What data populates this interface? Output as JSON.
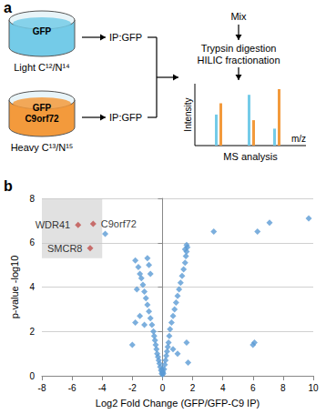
{
  "diagram": {
    "label": "a",
    "samples": [
      {
        "protein": [
          "GFP"
        ],
        "label": "Light C¹²/N¹⁴",
        "color": "#74cbe8"
      },
      {
        "protein": [
          "GFP",
          "C9orf72"
        ],
        "label": "Heavy C¹³/N¹⁵",
        "color": "#f39a3c"
      }
    ],
    "step": "IP:GFP",
    "workflow": [
      "Mix",
      "Trypsin digestion",
      "HILIC fractionation"
    ],
    "spectrum": {
      "y_label": "Intensity",
      "x_label": "m/z",
      "caption": "MS analysis"
    }
  },
  "chart_data": {
    "type": "scatter",
    "panel_label": "b",
    "x_label": "Log2 Fold Change (GFP/GFP-C9 IP)",
    "y_label": "p-value -log10",
    "xlim": [
      -8,
      10
    ],
    "xticks": [
      -8,
      -6,
      -4,
      -2,
      0,
      2,
      4,
      6,
      8,
      10
    ],
    "ylim": [
      0,
      8
    ],
    "yticks": [
      0,
      2,
      4,
      6,
      8
    ],
    "grid": true,
    "highlight": {
      "x": [
        -8,
        -4
      ],
      "y": [
        5.3,
        8
      ]
    },
    "series": [
      {
        "color": "#5b9bd5",
        "marker": "diamond",
        "x": [
          -0.05,
          -0.1,
          -0.15,
          -0.2,
          -0.25,
          -0.3,
          -0.35,
          -0.4,
          -0.45,
          -0.5,
          -0.55,
          -0.6,
          -0.7,
          -0.8,
          -0.9,
          -1.0,
          -1.1,
          -1.2,
          -1.3,
          -1.4,
          -1.5,
          -1.6,
          -1.8,
          -0.9,
          -1.0,
          -0.8,
          -1.2,
          -1.5,
          -1.8,
          -2.0,
          -1.7,
          -3.8,
          0.05,
          0.1,
          0.15,
          0.2,
          0.25,
          0.3,
          0.35,
          0.4,
          0.45,
          0.5,
          0.6,
          0.7,
          0.8,
          0.9,
          1.0,
          1.1,
          1.2,
          1.3,
          1.4,
          1.5,
          1.55,
          1.6,
          1.65,
          1.5,
          1.6,
          0.7,
          1.0,
          1.6,
          1.7,
          3.4,
          6.0,
          6.1,
          6.3,
          7.1,
          9.7,
          0,
          0.02,
          -0.02,
          0.0
        ],
        "y": [
          0.1,
          0.25,
          0.4,
          0.55,
          0.7,
          0.85,
          1.0,
          1.2,
          1.4,
          1.6,
          1.8,
          2.0,
          2.3,
          2.6,
          2.9,
          3.2,
          3.5,
          3.8,
          4.1,
          4.4,
          4.6,
          4.9,
          5.2,
          5.0,
          5.3,
          4.6,
          2.3,
          2.7,
          2.4,
          1.4,
          3.9,
          6.4,
          0.1,
          0.3,
          0.5,
          0.7,
          0.9,
          1.1,
          1.3,
          1.5,
          1.8,
          2.1,
          2.4,
          2.7,
          3.0,
          3.3,
          3.6,
          3.9,
          4.2,
          4.5,
          4.8,
          5.1,
          5.4,
          5.6,
          5.8,
          5.7,
          5.9,
          1.2,
          1.0,
          1.5,
          0.6,
          6.5,
          1.4,
          1.5,
          6.5,
          6.9,
          7.1,
          0.05,
          0.15,
          0.3,
          0.2
        ]
      },
      {
        "color": "#c0504d",
        "marker": "diamond",
        "x": [
          -5.6,
          -4.6,
          -4.8
        ],
        "y": [
          6.8,
          6.85,
          5.75
        ],
        "labels": [
          "WDR41",
          "C9orf72",
          "SMCR8"
        ]
      }
    ]
  }
}
